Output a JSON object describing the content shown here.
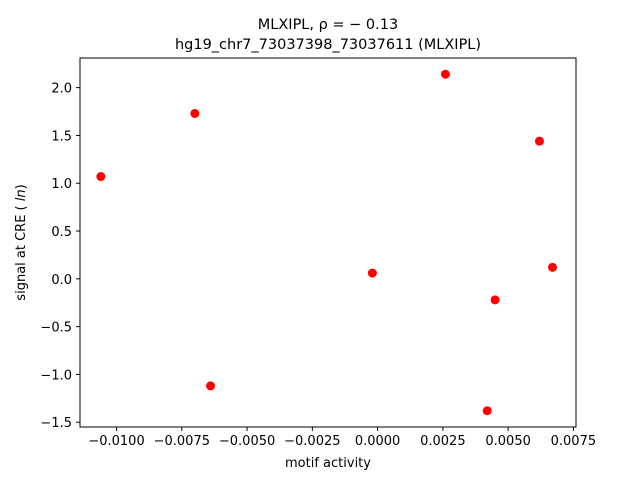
{
  "chart_data": {
    "type": "scatter",
    "title_line1": "MLXIPL, ρ = − 0.13",
    "title_line2": "hg19_chr7_73037398_73037611 (MLXIPL)",
    "xlabel": "motif activity",
    "ylabel": "signal at CRE (ln)",
    "xlim": [
      -0.0114,
      0.0076
    ],
    "ylim": [
      -1.55,
      2.31
    ],
    "xticks": [
      {
        "value": -0.01,
        "label": "−0.0100"
      },
      {
        "value": -0.0075,
        "label": "−0.0075"
      },
      {
        "value": -0.005,
        "label": "−0.0050"
      },
      {
        "value": -0.0025,
        "label": "−0.0025"
      },
      {
        "value": 0.0,
        "label": "0.0000"
      },
      {
        "value": 0.0025,
        "label": "0.0025"
      },
      {
        "value": 0.005,
        "label": "0.0050"
      },
      {
        "value": 0.0075,
        "label": "0.0075"
      }
    ],
    "yticks": [
      {
        "value": -1.5,
        "label": "−1.5"
      },
      {
        "value": -1.0,
        "label": "−1.0"
      },
      {
        "value": -0.5,
        "label": "−0.5"
      },
      {
        "value": 0.0,
        "label": "0.0"
      },
      {
        "value": 0.5,
        "label": "0.5"
      },
      {
        "value": 1.0,
        "label": "1.0"
      },
      {
        "value": 1.5,
        "label": "1.5"
      },
      {
        "value": 2.0,
        "label": "2.0"
      }
    ],
    "marker_color": "#ff0000",
    "grid": false,
    "points": [
      {
        "x": -0.0106,
        "y": 1.07
      },
      {
        "x": -0.007,
        "y": 1.73
      },
      {
        "x": -0.0064,
        "y": -1.12
      },
      {
        "x": -0.0002,
        "y": 0.06
      },
      {
        "x": 0.0026,
        "y": 2.14
      },
      {
        "x": 0.0042,
        "y": -1.38
      },
      {
        "x": 0.0045,
        "y": -0.22
      },
      {
        "x": 0.0062,
        "y": 1.44
      },
      {
        "x": 0.0067,
        "y": 0.12
      }
    ]
  }
}
